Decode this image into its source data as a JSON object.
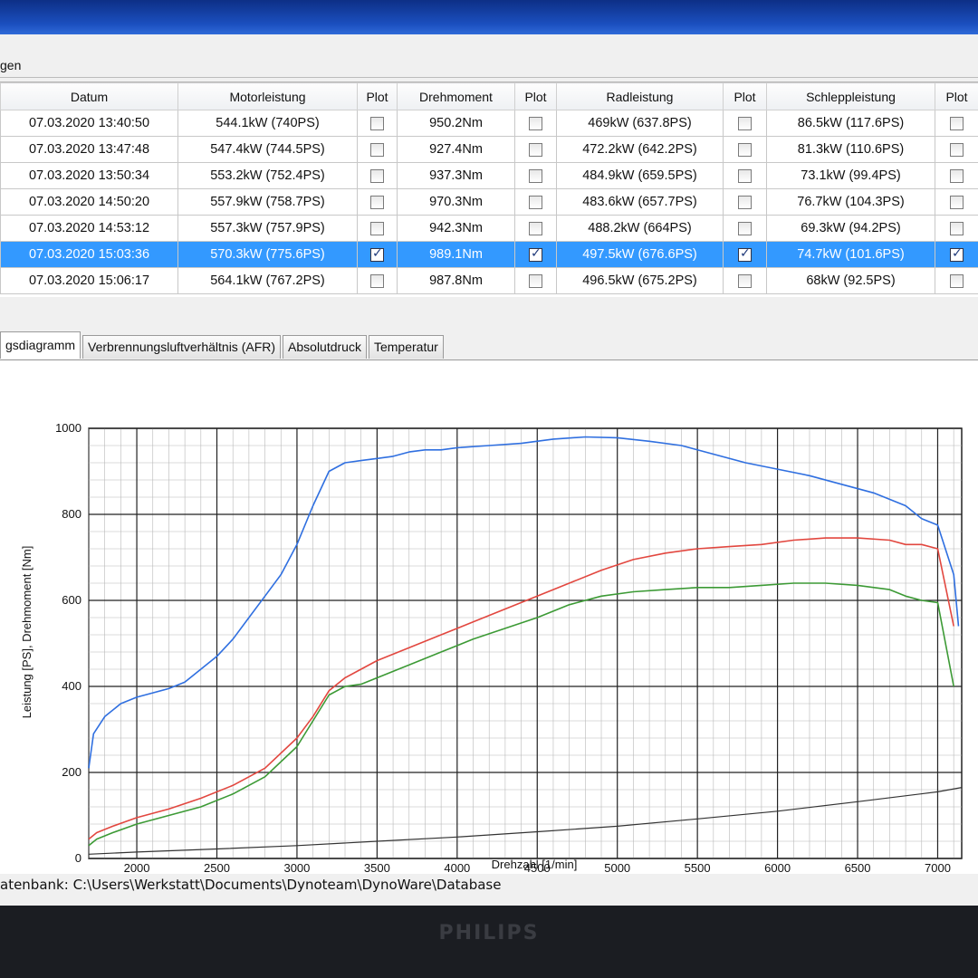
{
  "group_label": "gen",
  "table": {
    "headers": [
      "Datum",
      "Motorleistung",
      "Plot",
      "Drehmoment",
      "Plot",
      "Radleistung",
      "Plot",
      "Schleppleistung",
      "Plot"
    ],
    "rows": [
      {
        "datum": "07.03.2020 13:40:50",
        "motorleistung": "544.1kW (740PS)",
        "drehmoment": "950.2Nm",
        "radleistung": "469kW (637.8PS)",
        "schleppleistung": "86.5kW (117.6PS)",
        "checked": false,
        "selected": false
      },
      {
        "datum": "07.03.2020 13:47:48",
        "motorleistung": "547.4kW (744.5PS)",
        "drehmoment": "927.4Nm",
        "radleistung": "472.2kW (642.2PS)",
        "schleppleistung": "81.3kW (110.6PS)",
        "checked": false,
        "selected": false
      },
      {
        "datum": "07.03.2020 13:50:34",
        "motorleistung": "553.2kW (752.4PS)",
        "drehmoment": "937.3Nm",
        "radleistung": "484.9kW (659.5PS)",
        "schleppleistung": "73.1kW (99.4PS)",
        "checked": false,
        "selected": false
      },
      {
        "datum": "07.03.2020 14:50:20",
        "motorleistung": "557.9kW (758.7PS)",
        "drehmoment": "970.3Nm",
        "radleistung": "483.6kW (657.7PS)",
        "schleppleistung": "76.7kW (104.3PS)",
        "checked": false,
        "selected": false
      },
      {
        "datum": "07.03.2020 14:53:12",
        "motorleistung": "557.3kW (757.9PS)",
        "drehmoment": "942.3Nm",
        "radleistung": "488.2kW (664PS)",
        "schleppleistung": "69.3kW (94.2PS)",
        "checked": false,
        "selected": false
      },
      {
        "datum": "07.03.2020 15:03:36",
        "motorleistung": "570.3kW (775.6PS)",
        "drehmoment": "989.1Nm",
        "radleistung": "497.5kW (676.6PS)",
        "schleppleistung": "74.7kW (101.6PS)",
        "checked": true,
        "selected": true
      },
      {
        "datum": "07.03.2020 15:06:17",
        "motorleistung": "564.1kW (767.2PS)",
        "drehmoment": "987.8Nm",
        "radleistung": "496.5kW (675.2PS)",
        "schleppleistung": "68kW (92.5PS)",
        "checked": false,
        "selected": false
      }
    ]
  },
  "tabs": [
    "gsdiagramm",
    "Verbrennungsluftverhältnis (AFR)",
    "Absolutdruck",
    "Temperatur"
  ],
  "status": {
    "label": "atenbank:",
    "path": "C:\\Users\\Werkstatt\\Documents\\Dynoteam\\DynoWare\\Database"
  },
  "monitor_brand": "PHILIPS",
  "colors": {
    "selection": "#3399ff",
    "torque": "#2f6fe0",
    "power": "#e2473f",
    "wheel_power": "#3c9a35",
    "drag": "#333333"
  },
  "chart_data": {
    "type": "line",
    "xlabel": "Drehzahl [1/min]",
    "ylabel": "Leistung [PS], Drehmoment [Nm]",
    "xlim": [
      1700,
      7150
    ],
    "ylim": [
      0,
      1000
    ],
    "x_ticks": [
      2000,
      2500,
      3000,
      3500,
      4000,
      4500,
      5000,
      5500,
      6000,
      6500,
      7000
    ],
    "y_ticks": [
      0,
      200,
      400,
      600,
      800,
      1000
    ],
    "grid": true,
    "series": [
      {
        "x": [
          1700,
          1730,
          1800,
          1900,
          2000,
          2100,
          2200,
          2300,
          2400,
          2500,
          2600,
          2700,
          2800,
          2900,
          3000,
          3100,
          3200,
          3300,
          3400,
          3500,
          3600,
          3700,
          3800,
          3900,
          4000,
          4200,
          4400,
          4600,
          4800,
          5000,
          5200,
          5400,
          5600,
          5800,
          6000,
          6200,
          6400,
          6600,
          6800,
          6900,
          7000,
          7100,
          7130
        ],
        "y": [
          210,
          290,
          330,
          360,
          375,
          385,
          395,
          410,
          440,
          470,
          510,
          560,
          610,
          660,
          730,
          820,
          900,
          920,
          925,
          930,
          935,
          945,
          950,
          950,
          955,
          960,
          965,
          975,
          980,
          978,
          970,
          960,
          940,
          920,
          905,
          890,
          870,
          850,
          820,
          790,
          775,
          660,
          540
        ]
      },
      {
        "x": [
          1700,
          1750,
          1850,
          2000,
          2200,
          2400,
          2600,
          2800,
          3000,
          3100,
          3200,
          3300,
          3400,
          3500,
          3700,
          3900,
          4100,
          4300,
          4500,
          4700,
          4900,
          5100,
          5300,
          5500,
          5700,
          5900,
          6100,
          6300,
          6500,
          6700,
          6800,
          6900,
          7000,
          7100
        ],
        "y": [
          45,
          60,
          75,
          95,
          115,
          140,
          170,
          210,
          280,
          330,
          390,
          420,
          440,
          460,
          490,
          520,
          550,
          580,
          610,
          640,
          670,
          695,
          710,
          720,
          725,
          730,
          740,
          745,
          745,
          740,
          730,
          730,
          720,
          540
        ]
      },
      {
        "x": [
          1700,
          1750,
          1850,
          2000,
          2200,
          2400,
          2600,
          2800,
          3000,
          3100,
          3200,
          3300,
          3400,
          3500,
          3700,
          3900,
          4100,
          4300,
          4500,
          4700,
          4900,
          5100,
          5300,
          5500,
          5700,
          5900,
          6100,
          6300,
          6500,
          6700,
          6800,
          6900,
          7000,
          7100
        ],
        "y": [
          30,
          45,
          60,
          80,
          100,
          120,
          150,
          190,
          260,
          320,
          380,
          400,
          405,
          420,
          450,
          480,
          510,
          535,
          560,
          590,
          610,
          620,
          625,
          630,
          630,
          635,
          640,
          640,
          635,
          625,
          610,
          600,
          595,
          400
        ]
      },
      {
        "x": [
          1700,
          2000,
          2500,
          3000,
          3500,
          4000,
          4500,
          5000,
          5500,
          6000,
          6500,
          7000,
          7150
        ],
        "y": [
          10,
          15,
          22,
          30,
          40,
          50,
          62,
          75,
          92,
          110,
          132,
          155,
          165
        ]
      }
    ]
  }
}
